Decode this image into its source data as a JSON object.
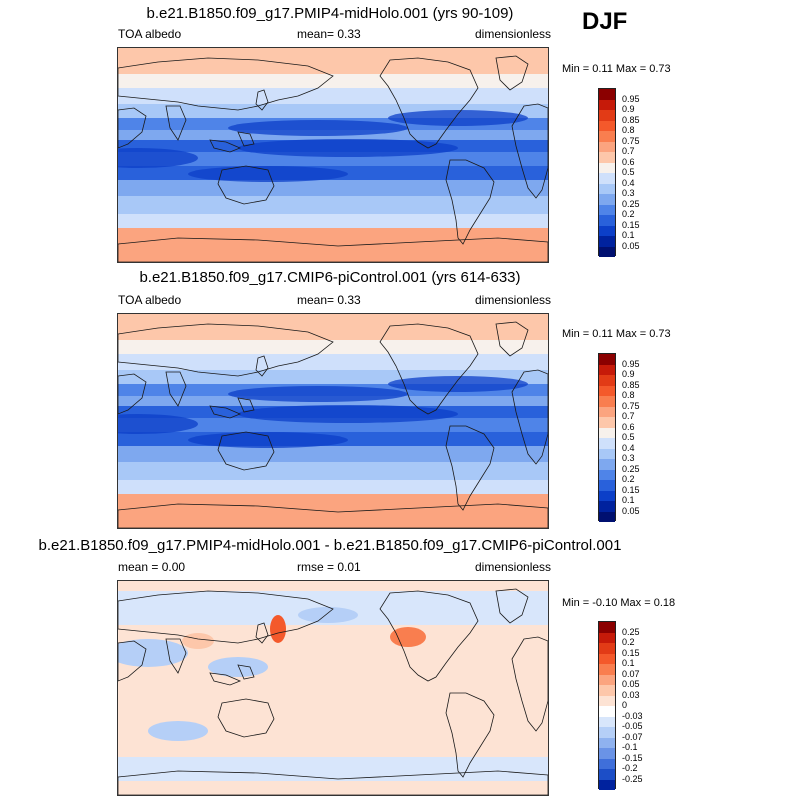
{
  "season": "DJF",
  "panels": [
    {
      "title": "b.e21.B1850.f09_g17.PMIP4-midHolo.001 (yrs 90-109)",
      "left_label": "TOA albedo",
      "center_label": "mean=   0.33",
      "right_label": "dimensionless",
      "minmax": "Min =   0.11 Max =   0.73",
      "kind": "abs"
    },
    {
      "title": "b.e21.B1850.f09_g17.CMIP6-piControl.001 (yrs 614-633)",
      "left_label": "TOA albedo",
      "center_label": "mean=   0.33",
      "right_label": "dimensionless",
      "minmax": "Min =   0.11 Max =   0.73",
      "kind": "abs"
    },
    {
      "title": "b.e21.B1850.f09_g17.PMIP4-midHolo.001 - b.e21.B1850.f09_g17.CMIP6-piControl.001",
      "left_label": "mean =   0.00",
      "center_label": "rmse =   0.01",
      "right_label": "dimensionless",
      "minmax": "Min =  -0.10 Max =   0.18",
      "kind": "diff"
    }
  ],
  "chart_data": [
    {
      "type": "heatmap",
      "title": "b.e21.B1850.f09_g17.PMIP4-midHolo.001 (yrs 90-109)",
      "variable": "TOA albedo",
      "units": "dimensionless",
      "mean": 0.33,
      "min": 0.11,
      "max": 0.73,
      "colorbar_levels": [
        "0.95",
        "0.9",
        "0.85",
        "0.8",
        "0.75",
        "0.7",
        "0.6",
        "0.5",
        "0.4",
        "0.3",
        "0.25",
        "0.2",
        "0.15",
        "0.1",
        "0.05"
      ]
    },
    {
      "type": "heatmap",
      "title": "b.e21.B1850.f09_g17.CMIP6-piControl.001 (yrs 614-633)",
      "variable": "TOA albedo",
      "units": "dimensionless",
      "mean": 0.33,
      "min": 0.11,
      "max": 0.73,
      "colorbar_levels": [
        "0.95",
        "0.9",
        "0.85",
        "0.8",
        "0.75",
        "0.7",
        "0.6",
        "0.5",
        "0.4",
        "0.3",
        "0.25",
        "0.2",
        "0.15",
        "0.1",
        "0.05"
      ]
    },
    {
      "type": "heatmap",
      "title": "b.e21.B1850.f09_g17.PMIP4-midHolo.001 - b.e21.B1850.f09_g17.CMIP6-piControl.001",
      "units": "dimensionless",
      "mean": 0.0,
      "rmse": 0.01,
      "min": -0.1,
      "max": 0.18,
      "colorbar_levels": [
        "0.25",
        "0.2",
        "0.15",
        "0.1",
        "0.07",
        "0.05",
        "0.03",
        "0",
        "-0.03",
        "-0.05",
        "-0.07",
        "-0.1",
        "-0.15",
        "-0.2",
        "-0.25"
      ]
    }
  ],
  "colors": {
    "abs_palette": [
      "#8b0000",
      "#c61a09",
      "#e23b16",
      "#f4592b",
      "#f97e4f",
      "#fba47f",
      "#fdc7aa",
      "#f7f1ec",
      "#cfe0fb",
      "#a8c8f7",
      "#7ea8ef",
      "#4f84e8",
      "#2961db",
      "#0c3fc8",
      "#00229e",
      "#001070"
    ],
    "diff_palette": [
      "#8b0000",
      "#c61a09",
      "#e23b16",
      "#f4592b",
      "#f97e4f",
      "#fba47f",
      "#fdc7aa",
      "#fde3d4",
      "#ffffff",
      "#d8e6fb",
      "#b5cff7",
      "#8fb2ef",
      "#6a93e6",
      "#3f6fda",
      "#1c4ec7",
      "#00229e"
    ],
    "coast": "#1a1a1a"
  }
}
